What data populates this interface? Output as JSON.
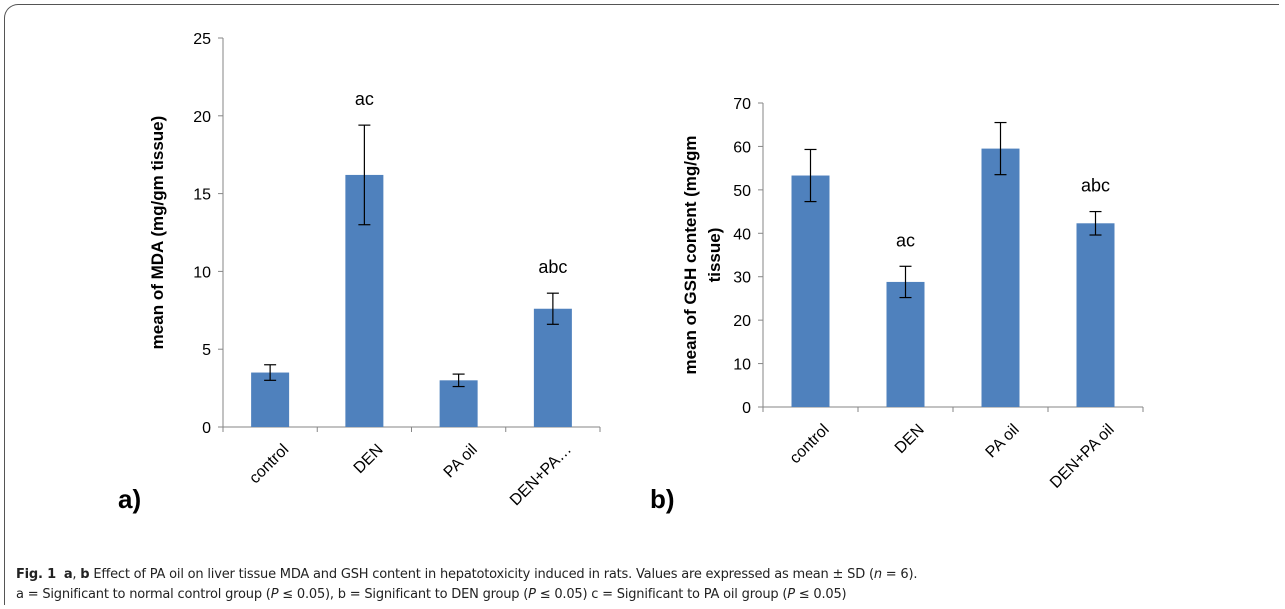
{
  "chart_data": [
    {
      "type": "bar",
      "panel": "a)",
      "y_label": [
        "mean of MDA (mg/gm tissue)"
      ],
      "categories": [
        "control",
        "DEN",
        "PA oil",
        "DEN+PA…"
      ],
      "values": [
        3.5,
        16.2,
        3.0,
        7.6
      ],
      "errors": [
        0.5,
        3.2,
        0.4,
        1.0
      ],
      "annotations": [
        null,
        "ac",
        null,
        "abc"
      ],
      "color": "#4f81bd",
      "ylim": [
        0,
        25
      ],
      "yticks": [
        0,
        5,
        10,
        15,
        20,
        25
      ]
    },
    {
      "type": "bar",
      "panel": "b)",
      "y_label": [
        "mean of GSH content (mg/gm",
        "tissue)"
      ],
      "categories": [
        "control",
        "DEN",
        "PA oil",
        "DEN+PA oil"
      ],
      "values": [
        53.3,
        28.8,
        59.5,
        42.3
      ],
      "errors": [
        6.0,
        3.6,
        6.0,
        2.7
      ],
      "annotations": [
        null,
        "ac",
        null,
        "abc"
      ],
      "color": "#4f81bd",
      "ylim": [
        0,
        70
      ],
      "yticks": [
        0,
        10,
        20,
        30,
        40,
        50,
        60,
        70
      ]
    }
  ],
  "caption": {
    "line1": [
      "Fig. 1",
      "a",
      ", ",
      "b",
      " Effect of PA oil on liver tissue MDA and GSH content in hepatotoxicity induced in rats. Values are expressed as mean ± SD (",
      "n",
      " = 6)."
    ],
    "line2": [
      "a = Significant to normal control group (",
      "P",
      " ≤ 0.05), b = Significant to DEN group (",
      "P",
      " ≤ 0.05) c = Significant to PA oil group (",
      "P",
      " ≤ 0.05)"
    ]
  }
}
